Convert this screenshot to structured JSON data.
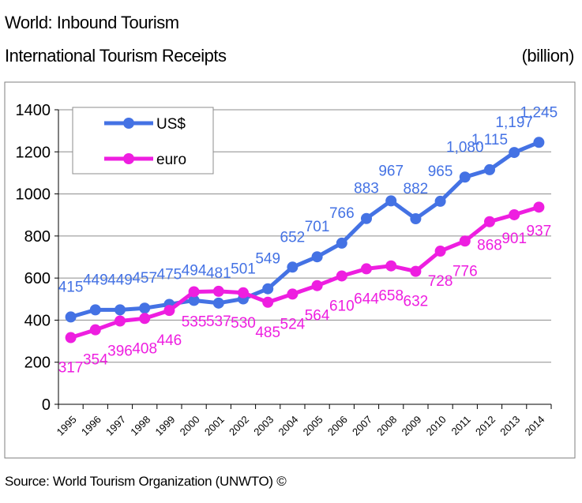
{
  "header": {
    "title": "World: Inbound Tourism",
    "subtitle": "International Tourism Receipts",
    "unit": "(billion)"
  },
  "footer": {
    "source": "Source: World Tourism Organization (UNWTO) ©"
  },
  "chart_data": {
    "type": "line",
    "x": [
      "1995",
      "1996",
      "1997",
      "1998",
      "1999",
      "2000",
      "2001",
      "2002",
      "2003",
      "2004",
      "2005",
      "2006",
      "2007",
      "2008",
      "2009",
      "2010",
      "2011",
      "2012",
      "2013",
      "2014"
    ],
    "ylim": [
      0,
      1400
    ],
    "yticks": [
      0,
      200,
      400,
      600,
      800,
      1000,
      1200,
      1400
    ],
    "grid": true,
    "legend": "top-left",
    "series": [
      {
        "name": "US$",
        "color": "#4472e4",
        "values": [
          415,
          449,
          449,
          457,
          475,
          494,
          481,
          501,
          549,
          652,
          701,
          766,
          883,
          967,
          882,
          965,
          1080,
          1115,
          1197,
          1245
        ],
        "labels": [
          "415",
          "449",
          "449",
          "457",
          "475",
          "494",
          "481",
          "501",
          "549",
          "652",
          "701",
          "766",
          "883",
          "967",
          "882",
          "965",
          "1,080",
          "1,115",
          "1,197",
          "1,245"
        ]
      },
      {
        "name": "euro",
        "color": "#ee1ee0",
        "values": [
          317,
          354,
          396,
          408,
          446,
          535,
          537,
          530,
          485,
          524,
          564,
          610,
          644,
          658,
          632,
          728,
          776,
          868,
          901,
          937
        ],
        "labels": [
          "317",
          "354",
          "396",
          "408",
          "446",
          "535",
          "537",
          "530",
          "485",
          "524",
          "564",
          "610",
          "644",
          "658",
          "632",
          "728",
          "776",
          "868",
          "901",
          "937"
        ]
      }
    ]
  }
}
